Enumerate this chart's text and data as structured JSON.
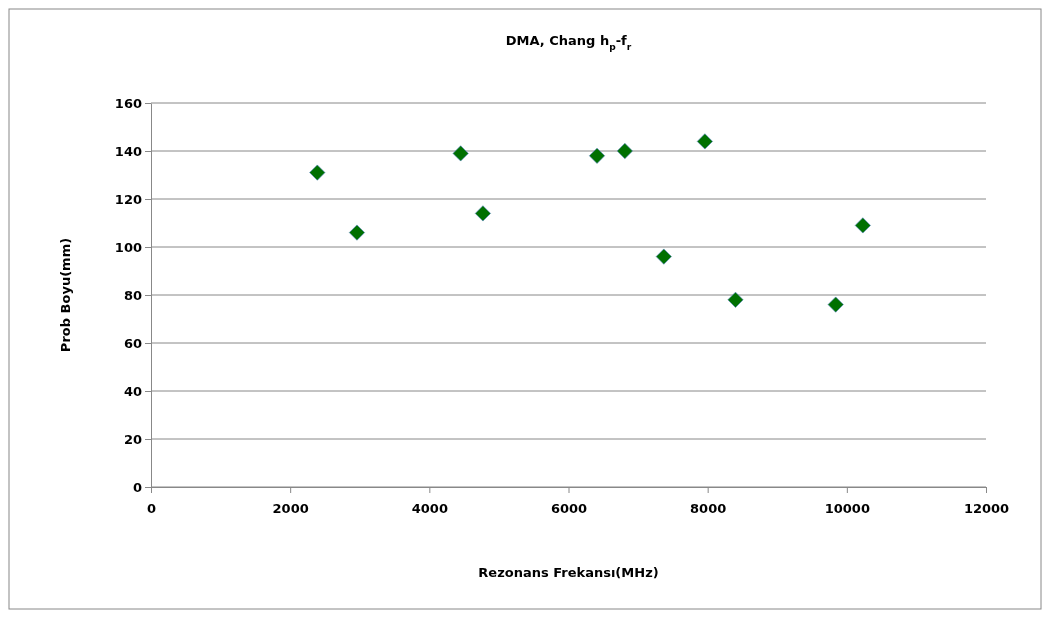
{
  "chart_data": {
    "type": "scatter",
    "title": "DMA, Chang h$_{p}$-f$_{r}$",
    "xlabel": "Rezonans Frekansı(MHz)",
    "ylabel": "Prob Boyu(mm)",
    "x": [
      2390,
      2960,
      4450,
      4770,
      6410,
      6810,
      7370,
      7960,
      8400,
      9840,
      10230
    ],
    "values": [
      131,
      106,
      139,
      114,
      138,
      140,
      96,
      144,
      78,
      76,
      109
    ],
    "color": "#007000",
    "marker": "diamond",
    "xlim": [
      0,
      12000
    ],
    "xticks": [
      0,
      2000,
      4000,
      6000,
      8000,
      10000,
      12000
    ],
    "ylim": [
      0,
      160
    ],
    "yticks": [
      0,
      20,
      40,
      60,
      80,
      100,
      120,
      140,
      160
    ],
    "grid": "y"
  }
}
